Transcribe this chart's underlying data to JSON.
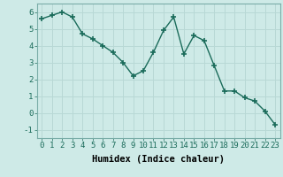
{
  "x": [
    0,
    1,
    2,
    3,
    4,
    5,
    6,
    7,
    8,
    9,
    10,
    11,
    12,
    13,
    14,
    15,
    16,
    17,
    18,
    19,
    20,
    21,
    22,
    23
  ],
  "y": [
    5.6,
    5.8,
    6.0,
    5.7,
    4.7,
    4.4,
    4.0,
    3.6,
    3.0,
    2.2,
    2.5,
    3.6,
    4.9,
    5.7,
    3.5,
    4.6,
    4.3,
    2.8,
    1.3,
    1.3,
    0.9,
    0.7,
    0.1,
    -0.7
  ],
  "line_color": "#1a6b5a",
  "marker": "+",
  "marker_size": 4,
  "marker_lw": 1.2,
  "bg_color": "#ceeae7",
  "grid_color": "#b8d8d5",
  "xlabel": "Humidex (Indice chaleur)",
  "ylim": [
    -1.5,
    6.5
  ],
  "xlim": [
    -0.5,
    23.5
  ],
  "yticks": [
    -1,
    0,
    1,
    2,
    3,
    4,
    5,
    6
  ],
  "xticks": [
    0,
    1,
    2,
    3,
    4,
    5,
    6,
    7,
    8,
    9,
    10,
    11,
    12,
    13,
    14,
    15,
    16,
    17,
    18,
    19,
    20,
    21,
    22,
    23
  ],
  "tick_label_fontsize": 6.5,
  "xlabel_fontsize": 7.5,
  "line_width": 1.0
}
